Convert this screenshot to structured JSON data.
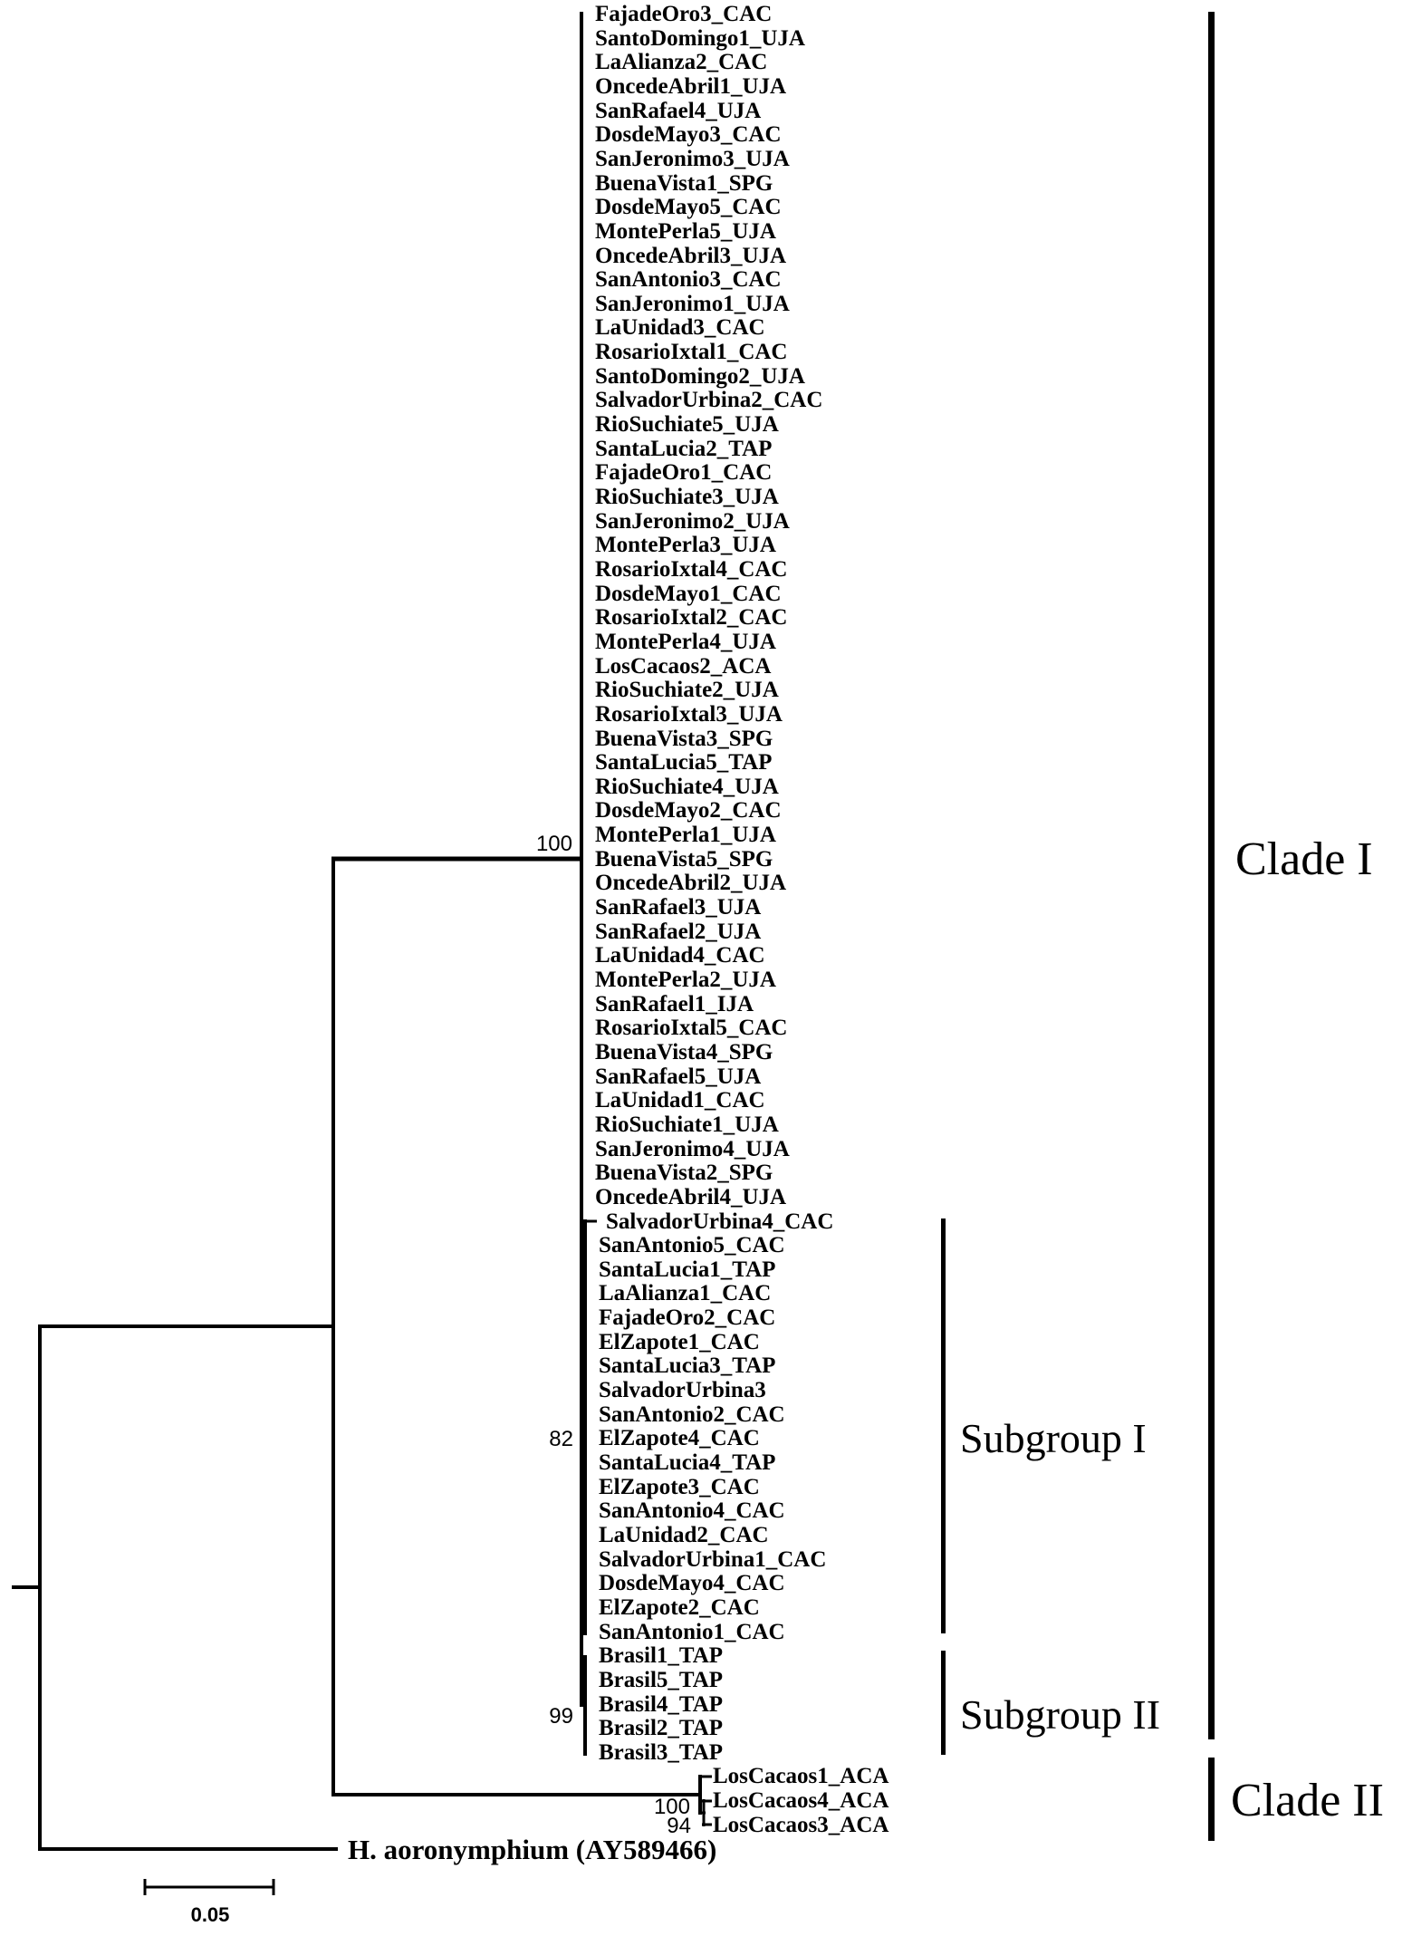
{
  "figure": {
    "type": "phylogenetic-tree",
    "orientation": "rectangular-cladogram-left-to-right"
  },
  "tree": {
    "clade1_main_tips": [
      "FajadeOro3_CAC",
      "SantoDomingo1_UJA",
      "LaAlianza2_CAC",
      "OncedeAbril1_UJA",
      "SanRafael4_UJA",
      "DosdeMayo3_CAC",
      "SanJeronimo3_UJA",
      "BuenaVista1_SPG",
      "DosdeMayo5_CAC",
      "MontePerla5_UJA",
      "OncedeAbril3_UJA",
      "SanAntonio3_CAC",
      "SanJeronimo1_UJA",
      "LaUnidad3_CAC",
      "RosarioIxtal1_CAC",
      "SantoDomingo2_UJA",
      "SalvadorUrbina2_CAC",
      "RioSuchiate5_UJA",
      "SantaLucia2_TAP",
      "FajadeOro1_CAC",
      "RioSuchiate3_UJA",
      "SanJeronimo2_UJA",
      "MontePerla3_UJA",
      "RosarioIxtal4_CAC",
      "DosdeMayo1_CAC",
      "RosarioIxtal2_CAC",
      "MontePerla4_UJA",
      "LosCacaos2_ACA",
      "RioSuchiate2_UJA",
      "RosarioIxtal3_UJA",
      "BuenaVista3_SPG",
      "SantaLucia5_TAP",
      "RioSuchiate4_UJA",
      "DosdeMayo2_CAC",
      "MontePerla1_UJA",
      "BuenaVista5_SPG",
      "OncedeAbril2_UJA",
      "SanRafael3_UJA",
      "SanRafael2_UJA",
      "LaUnidad4_CAC",
      "MontePerla2_UJA",
      "SanRafael1_IJA",
      "RosarioIxtal5_CAC",
      "BuenaVista4_SPG",
      "SanRafael5_UJA",
      "LaUnidad1_CAC",
      "RioSuchiate1_UJA",
      "SanJeronimo4_UJA",
      "BuenaVista2_SPG",
      "OncedeAbril4_UJA"
    ],
    "subgroup1_tips": [
      "SalvadorUrbina4_CAC",
      "SanAntonio5_CAC",
      "SantaLucia1_TAP",
      "LaAlianza1_CAC",
      "FajadeOro2_CAC",
      "ElZapote1_CAC",
      "SantaLucia3_TAP",
      "SalvadorUrbina3",
      "SanAntonio2_CAC",
      "ElZapote4_CAC",
      "SantaLucia4_TAP",
      "ElZapote3_CAC",
      "SanAntonio4_CAC",
      "LaUnidad2_CAC",
      "SalvadorUrbina1_CAC",
      "DosdeMayo4_CAC",
      "ElZapote2_CAC",
      "SanAntonio1_CAC"
    ],
    "subgroup2_tips": [
      "Brasil1_TAP",
      "Brasil5_TAP",
      "Brasil4_TAP",
      "Brasil2_TAP",
      "Brasil3_TAP"
    ],
    "clade2_tips": [
      "LosCacaos1_ACA",
      "LosCacaos4_ACA",
      "LosCacaos3_ACA"
    ],
    "outgroup": "H. aoronymphium (AY589466)",
    "bootstrap": {
      "clade1": "100",
      "subgroup1": "82",
      "subgroup2": "99",
      "clade2": "100",
      "clade2_inner": "94"
    },
    "labels": {
      "clade1": "Clade I",
      "clade2": "Clade II",
      "subgroup1": "Subgroup I",
      "subgroup2": "Subgroup II"
    },
    "scale": {
      "label": "0.05"
    }
  },
  "colors": {
    "line": "#000000",
    "text": "#000000",
    "background": "#ffffff"
  }
}
